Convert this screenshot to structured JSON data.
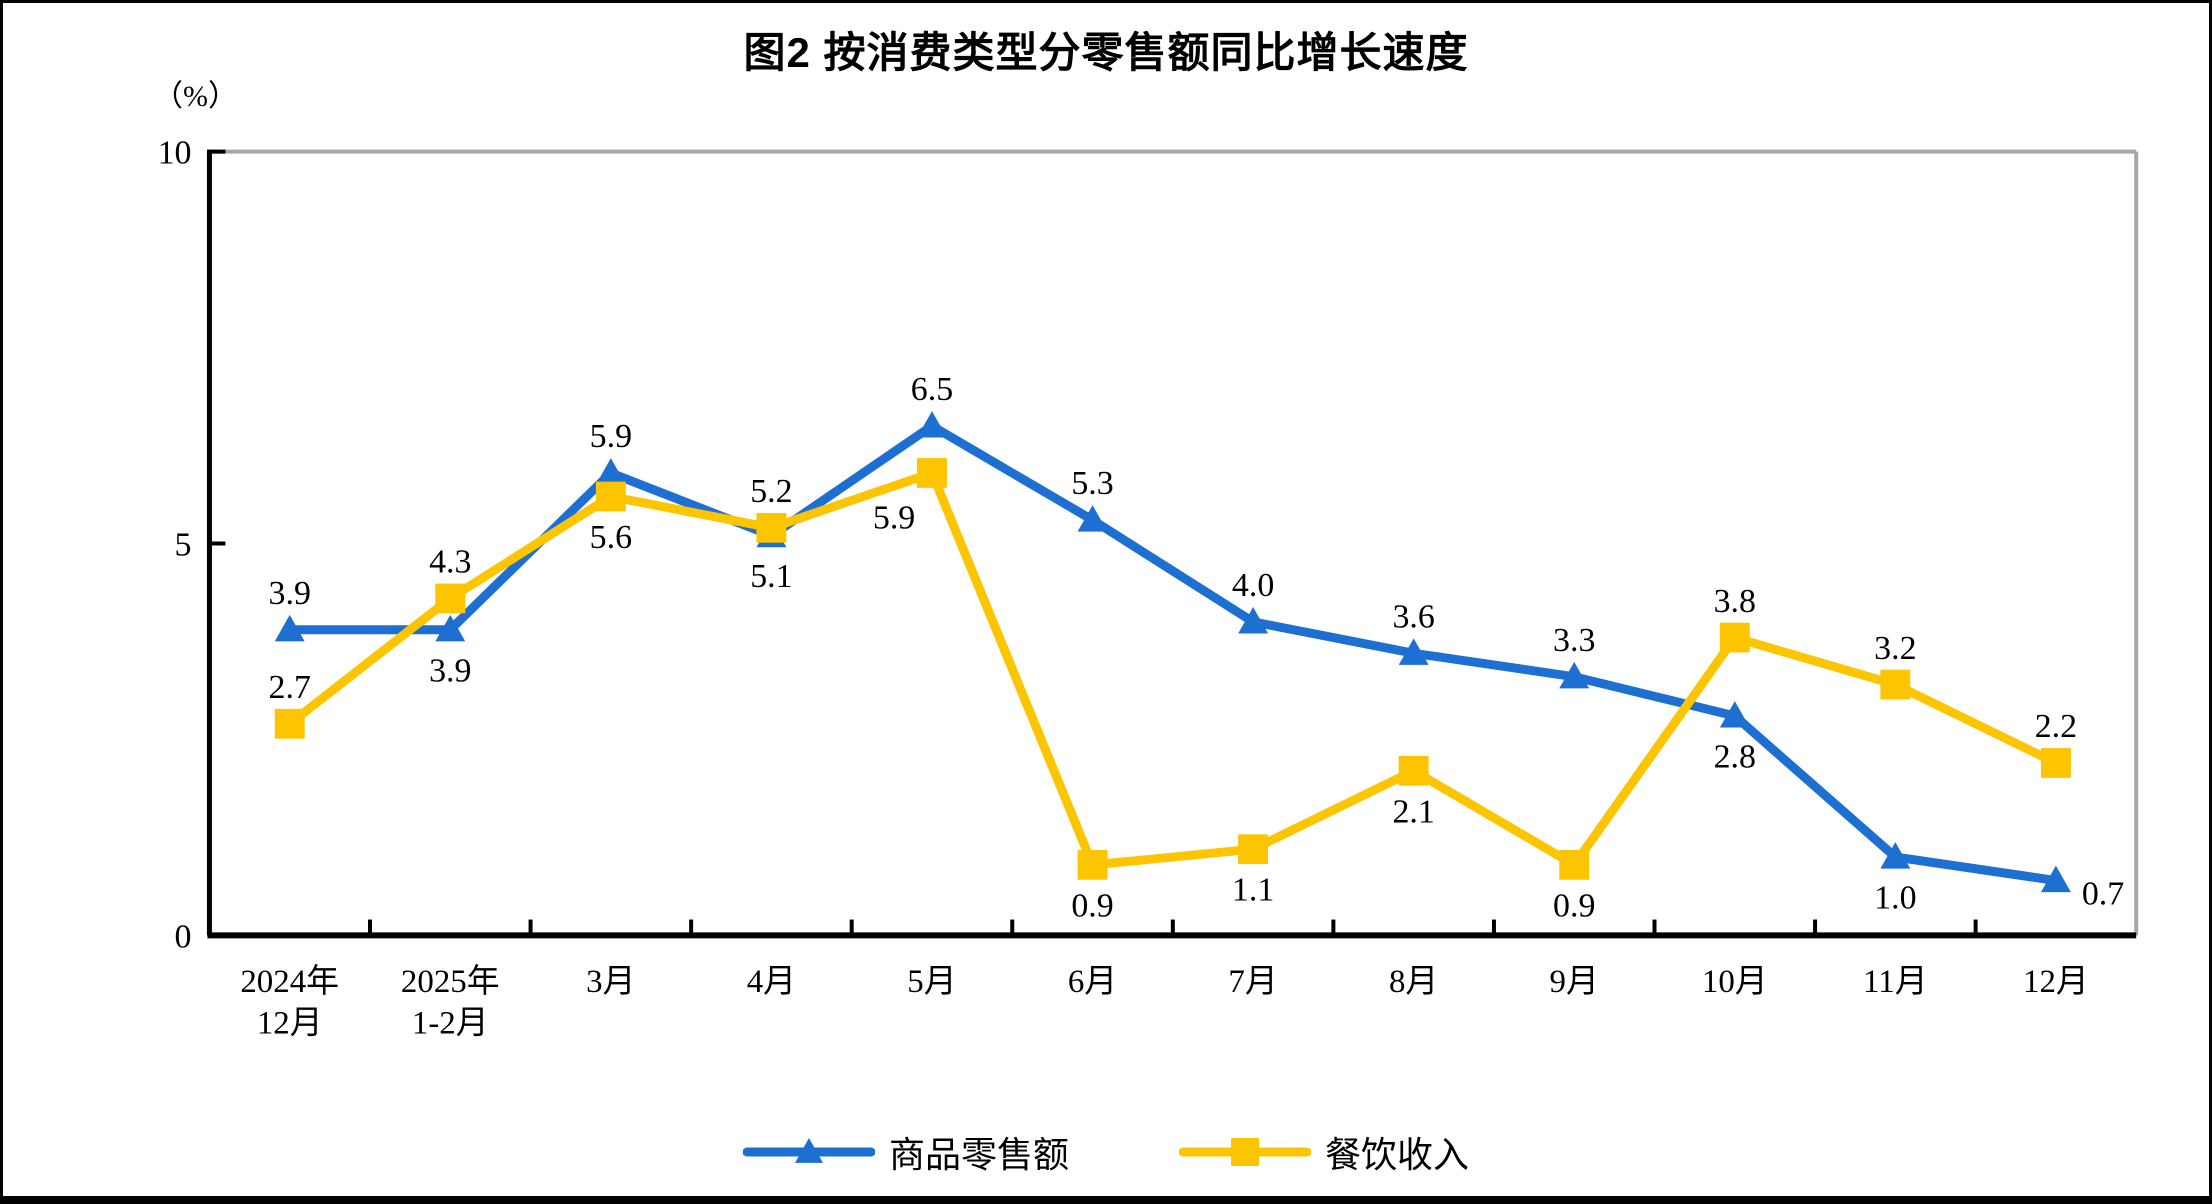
{
  "chart_data": {
    "type": "line",
    "title": "图2 按消费类型分零售额同比增长速度",
    "unit_label": "（%）",
    "ylim": [
      0,
      10
    ],
    "yticks": [
      0,
      5,
      10
    ],
    "grid": false,
    "legend_position": "bottom",
    "axis_color": "#000000",
    "frame_top_right_color": "#a6a6a6",
    "label_color": "#000000",
    "categories": [
      [
        "2024年",
        "12月"
      ],
      [
        "2025年",
        "1-2月"
      ],
      [
        "3月"
      ],
      [
        "4月"
      ],
      [
        "5月"
      ],
      [
        "6月"
      ],
      [
        "7月"
      ],
      [
        "8月"
      ],
      [
        "9月"
      ],
      [
        "10月"
      ],
      [
        "11月"
      ],
      [
        "12月"
      ]
    ],
    "series": [
      {
        "name": "商品零售额",
        "color": "#1e6fd2",
        "marker": "triangle",
        "values": [
          3.9,
          3.9,
          5.9,
          5.1,
          6.5,
          5.3,
          4.0,
          3.6,
          3.3,
          2.8,
          1.0,
          0.7
        ],
        "label_pos": [
          "above",
          "below",
          "above",
          "below",
          "above",
          "above",
          "above",
          "above",
          "above",
          "below",
          "below",
          "right"
        ]
      },
      {
        "name": "餐饮收入",
        "color": "#fdc400",
        "marker": "square",
        "values": [
          2.7,
          4.3,
          5.6,
          5.2,
          5.9,
          0.9,
          1.1,
          2.1,
          0.9,
          3.8,
          3.2,
          2.2
        ],
        "label_pos": [
          "above",
          "above",
          "below",
          "above",
          "below-left",
          "below",
          "below",
          "below",
          "below",
          "above",
          "above",
          "above"
        ]
      }
    ]
  }
}
